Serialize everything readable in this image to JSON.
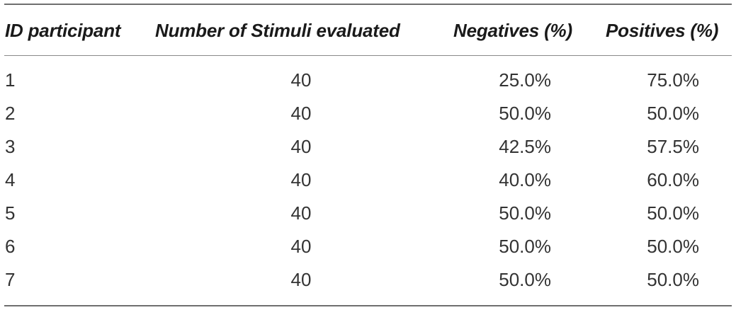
{
  "table": {
    "headers": {
      "id": "ID participant",
      "stimuli": "Number of Stimuli evaluated",
      "negatives": "Negatives (%)",
      "positives": "Positives (%)"
    },
    "rows": [
      {
        "id": "1",
        "stimuli": "40",
        "negatives": "25.0%",
        "positives": "75.0%"
      },
      {
        "id": "2",
        "stimuli": "40",
        "negatives": "50.0%",
        "positives": "50.0%"
      },
      {
        "id": "3",
        "stimuli": "40",
        "negatives": "42.5%",
        "positives": "57.5%"
      },
      {
        "id": "4",
        "stimuli": "40",
        "negatives": "40.0%",
        "positives": "60.0%"
      },
      {
        "id": "5",
        "stimuli": "40",
        "negatives": "50.0%",
        "positives": "50.0%"
      },
      {
        "id": "6",
        "stimuli": "40",
        "negatives": "50.0%",
        "positives": "50.0%"
      },
      {
        "id": "7",
        "stimuli": "40",
        "negatives": "50.0%",
        "positives": "50.0%"
      }
    ]
  }
}
